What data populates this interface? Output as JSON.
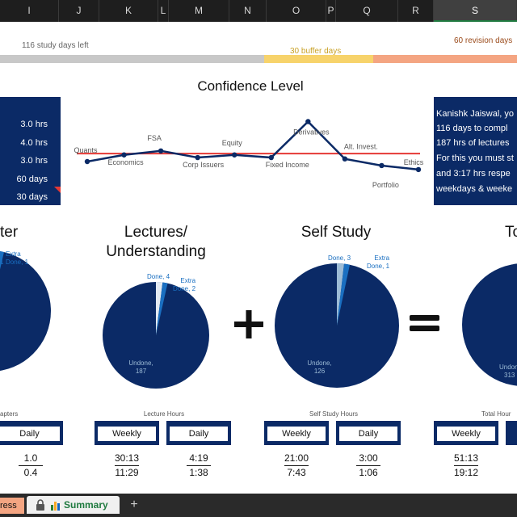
{
  "columns": [
    "I",
    "J",
    "K",
    "L",
    "M",
    "N",
    "O",
    "P",
    "Q",
    "R",
    "S"
  ],
  "selected_column": "S",
  "timeline": {
    "study_days_left": "116 study days left",
    "buffer_days": "30  buffer days",
    "revision_days": "60 revision days"
  },
  "left_panel": [
    "3.0 hrs",
    "4.0 hrs",
    "3.0 hrs",
    "60 days",
    "30 days"
  ],
  "right_panel": [
    "Kanishk Jaiswal, yo",
    "116 days to compl",
    "187 hrs of lectures",
    "For this you must st",
    "and 3:17 hrs respe",
    "weekdays & weeke"
  ],
  "confidence": {
    "title": "Confidence Level",
    "subjects": [
      "Quants",
      "Economics",
      "FSA",
      "Corp Issuers",
      "Equity",
      "Fixed Income",
      "Derivatives",
      "Alt. Invest.",
      "Portfolio",
      "Ethics"
    ],
    "levels": [
      3.0,
      3.5,
      3.8,
      3.3,
      3.5,
      3.3,
      6.0,
      3.2,
      2.7,
      2.4
    ],
    "target_line": 3.6
  },
  "pies": {
    "chapters": {
      "title": "ter",
      "extra": "Extra\nDone, 1",
      "one": "1"
    },
    "lectures": {
      "title_1": "Lectures/",
      "title_2": "Understanding",
      "done": "Done, 4",
      "extra": "Extra\nDone, 2",
      "undone_1": "Undone,",
      "undone_2": "187"
    },
    "self_study": {
      "title": "Self Study",
      "done": "Done, 3",
      "extra": "Extra\nDone, 1",
      "undone_1": "Undone,",
      "undone_2": "126"
    },
    "total": {
      "title": "To",
      "undone_1": "Undon",
      "undone_2": "313"
    }
  },
  "operators": {
    "plus": "+",
    "equals": "="
  },
  "tables": {
    "chapters": {
      "caption": "apters",
      "daily_label": "Daily",
      "daily_top": "1.0",
      "daily_bot": "0.4"
    },
    "lecture": {
      "caption": "Lecture Hours",
      "weekly_label": "Weekly",
      "daily_label": "Daily",
      "weekly_top": "30:13",
      "weekly_bot": "11:29",
      "daily_top": "4:19",
      "daily_bot": "1:38"
    },
    "self_study": {
      "caption": "Self Study Hours",
      "weekly_label": "Weekly",
      "daily_label": "Daily",
      "weekly_top": "21:00",
      "weekly_bot": "7:43",
      "daily_top": "3:00",
      "daily_bot": "1:06"
    },
    "total": {
      "caption": "Total Hour",
      "weekly_label": "Weekly",
      "weekly_top": "51:13",
      "weekly_bot": "19:12"
    }
  },
  "tabs": {
    "left_partial": "ress",
    "summary": "Summary",
    "add": "+"
  },
  "colors": {
    "navy": "#0b2a66",
    "pie_done": "#9dbcd6",
    "pie_extra": "#1a6fc1",
    "target_line": "#e53935",
    "buffer": "#f7d36b",
    "revision": "#f4a582",
    "study": "#c8c8c8",
    "summary_tab_text": "#1f7a3f"
  }
}
